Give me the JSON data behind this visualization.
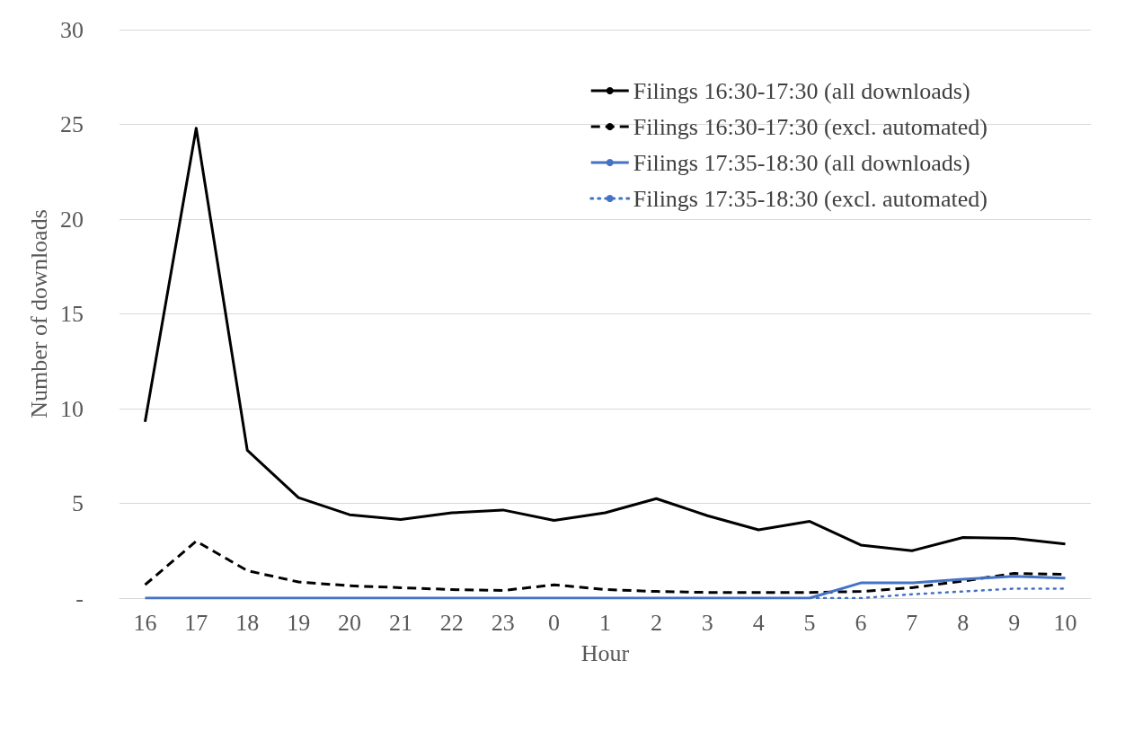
{
  "chart_data": {
    "type": "line",
    "xlabel": "Hour",
    "ylabel": "Number of downloads",
    "categories": [
      "16",
      "17",
      "18",
      "19",
      "20",
      "21",
      "22",
      "23",
      "0",
      "1",
      "2",
      "3",
      "4",
      "5",
      "6",
      "7",
      "8",
      "9",
      "10"
    ],
    "series": [
      {
        "name": "Filings 16:30-17:30 (all downloads)",
        "color": "#000000",
        "line_style": "solid",
        "values": [
          9.3,
          24.8,
          7.8,
          5.3,
          4.4,
          4.15,
          4.5,
          4.65,
          4.1,
          4.5,
          5.25,
          4.35,
          3.6,
          4.05,
          2.8,
          2.5,
          3.2,
          3.15,
          2.85
        ]
      },
      {
        "name": "Filings 16:30-17:30 (excl. automated)",
        "color": "#000000",
        "line_style": "dashed",
        "values": [
          0.7,
          3.0,
          1.45,
          0.85,
          0.65,
          0.55,
          0.45,
          0.4,
          0.7,
          0.45,
          0.35,
          0.3,
          0.3,
          0.3,
          0.35,
          0.55,
          0.9,
          1.3,
          1.25
        ]
      },
      {
        "name": "Filings 17:35-18:30 (all downloads)",
        "color": "#4472c4",
        "line_style": "solid",
        "values": [
          0,
          0,
          0,
          0,
          0,
          0,
          0,
          0,
          0,
          0,
          0,
          0,
          0,
          0,
          0.8,
          0.8,
          1.0,
          1.15,
          1.05
        ]
      },
      {
        "name": "Filings 17:35-18:30 (excl. automated)",
        "color": "#4472c4",
        "line_style": "dotted",
        "values": [
          null,
          null,
          null,
          null,
          null,
          null,
          null,
          null,
          null,
          null,
          null,
          null,
          null,
          0,
          0.0,
          0.2,
          0.35,
          0.5,
          0.5
        ]
      }
    ],
    "ylim": [
      0,
      30
    ],
    "yticks": [
      {
        "value": 0,
        "label": "-"
      },
      5,
      10,
      15,
      20,
      25,
      30
    ],
    "grid": "y",
    "legend": "top right",
    "marker": "none"
  }
}
